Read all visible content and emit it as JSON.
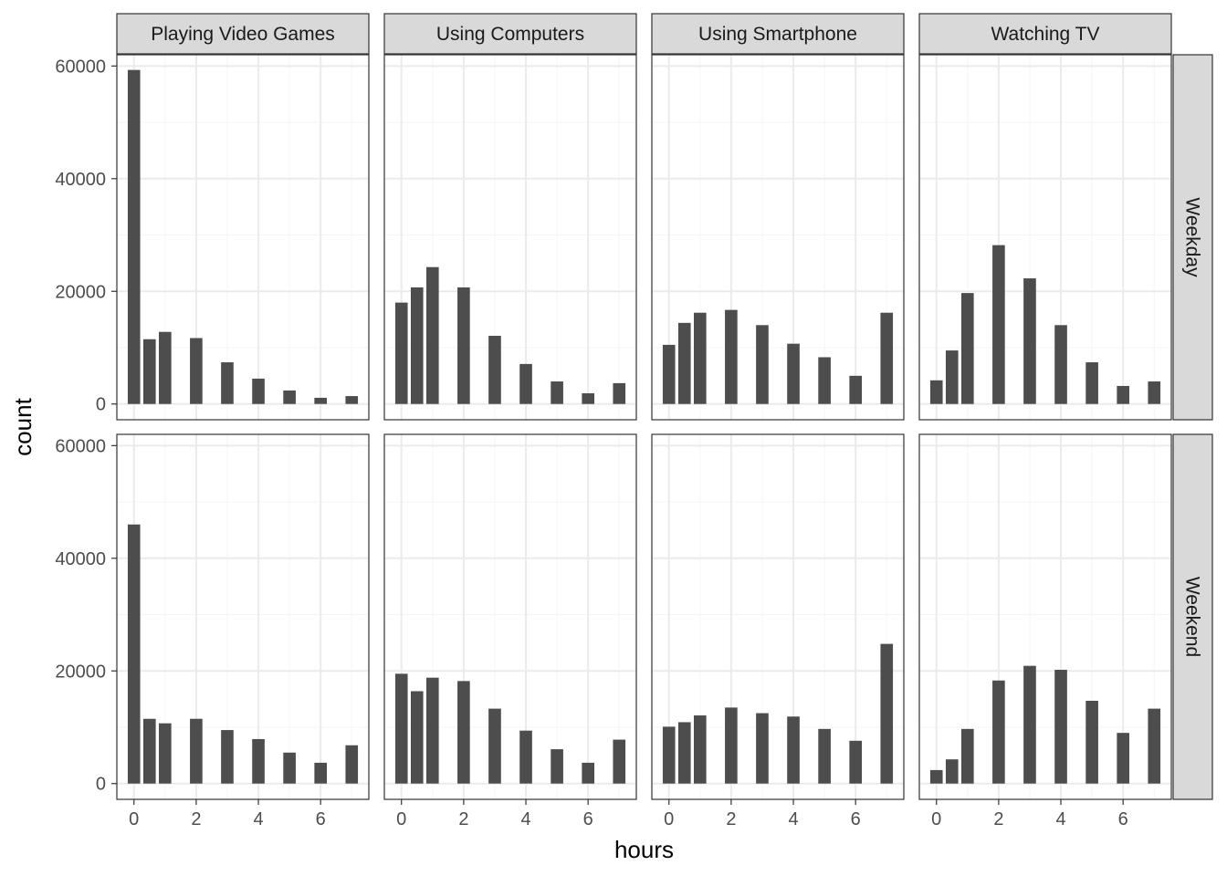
{
  "chart_data": {
    "type": "bar",
    "panel_columns": [
      "Playing Video Games",
      "Using Computers",
      "Using Smartphone",
      "Watching TV"
    ],
    "panel_rows": [
      "Weekday",
      "Weekend"
    ],
    "xlabel": "hours",
    "ylabel": "count",
    "x": [
      0,
      0.5,
      1,
      2,
      3,
      4,
      5,
      6,
      7
    ],
    "x_ticks": [
      "0",
      "2",
      "4",
      "6"
    ],
    "x_tick_values": [
      0,
      2,
      4,
      6
    ],
    "y_ticks": [
      "0",
      "20000",
      "40000",
      "60000"
    ],
    "y_tick_values": [
      0,
      20000,
      40000,
      60000
    ],
    "xlim": [
      -0.55,
      7.55
    ],
    "ylim": [
      -2800,
      62000
    ],
    "grid": true,
    "panels": [
      {
        "row": "Weekday",
        "col": "Playing Video Games",
        "values": [
          59300,
          11500,
          12800,
          11700,
          7400,
          4500,
          2400,
          1100,
          1400
        ]
      },
      {
        "row": "Weekday",
        "col": "Using Computers",
        "values": [
          18000,
          20700,
          24300,
          20700,
          12100,
          7100,
          4000,
          1900,
          3700
        ]
      },
      {
        "row": "Weekday",
        "col": "Using Smartphone",
        "values": [
          10500,
          14400,
          16200,
          16700,
          14000,
          10700,
          8300,
          5000,
          16200
        ]
      },
      {
        "row": "Weekday",
        "col": "Watching TV",
        "values": [
          4200,
          9500,
          19700,
          28200,
          22300,
          14000,
          7400,
          3200,
          4000
        ]
      },
      {
        "row": "Weekend",
        "col": "Playing Video Games",
        "values": [
          46000,
          11500,
          10700,
          11500,
          9500,
          7900,
          5500,
          3700,
          6800
        ]
      },
      {
        "row": "Weekend",
        "col": "Using Computers",
        "values": [
          19500,
          16400,
          18800,
          18200,
          13300,
          9400,
          6100,
          3700,
          7800
        ]
      },
      {
        "row": "Weekend",
        "col": "Using Smartphone",
        "values": [
          10100,
          10900,
          12100,
          13500,
          12500,
          11900,
          9700,
          7600,
          24800
        ]
      },
      {
        "row": "Weekend",
        "col": "Watching TV",
        "values": [
          2400,
          4300,
          9700,
          18300,
          20900,
          20200,
          14700,
          9000,
          13300
        ]
      }
    ],
    "colors": {
      "bar": "#4d4d4d",
      "strip_fill": "#d9d9d9",
      "panel_border": "#333333",
      "grid_major": "#ebebeb",
      "grid_minor": "#f5f5f5"
    }
  }
}
